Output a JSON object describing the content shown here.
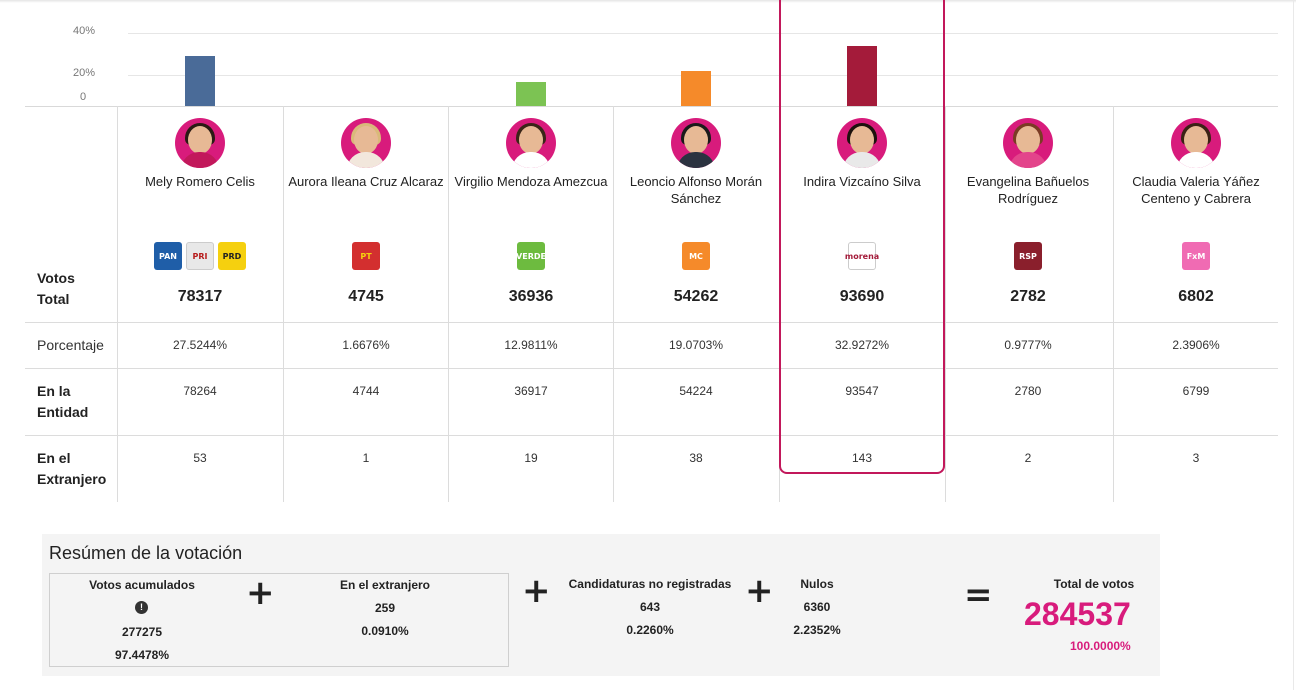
{
  "chart_data": {
    "type": "bar",
    "categories": [
      "Mely Romero Celis",
      "Aurora Ileana Cruz Alcaraz",
      "Virgilio Mendoza Amezcua",
      "Leoncio Alfonso Morán Sánchez",
      "Indira Vizcaíno Silva",
      "Evangelina Bañuelos Rodríguez",
      "Claudia Valeria Yáñez Centeno y Cabrera"
    ],
    "values": [
      27.5244,
      1.6676,
      12.9811,
      19.0703,
      32.9272,
      0.9777,
      2.3906
    ],
    "bar_colors": [
      "#4a6b98",
      "#ffffff",
      "#7cc353",
      "#f58a2a",
      "#a41b3a",
      "#ffffff",
      "#ffffff"
    ],
    "ytick_labels": [
      "40%",
      "20%",
      "0"
    ],
    "yticks": [
      40,
      20,
      0
    ],
    "ylim": [
      0,
      40
    ]
  },
  "table": {
    "row_labels": {
      "votos_l1": "Votos",
      "votos_l2": "Total",
      "porcentaje": "Porcentaje",
      "entidad_l1": "En la",
      "entidad_l2": "Entidad",
      "extranjero_l1": "En el",
      "extranjero_l2": "Extranjero"
    },
    "candidates": [
      {
        "name_l1": "Mely Romero Celis",
        "name_l2": "",
        "votes": "78317",
        "pct": "27.5244%",
        "entidad": "78264",
        "extranjero": "53",
        "hair": "#2a1a14",
        "outfit": "#c2185b",
        "logos": [
          {
            "text": "PAN",
            "bg": "#1f5ea8"
          },
          {
            "text": "PRI",
            "bg": "#e8e8e8",
            "fg": "#b71c1c"
          },
          {
            "text": "PRD",
            "bg": "#f5d00f",
            "fg": "#222"
          }
        ]
      },
      {
        "name_l1": "Aurora Ileana Cruz Alcaraz",
        "name_l2": "",
        "votes": "4745",
        "pct": "1.6676%",
        "entidad": "4744",
        "extranjero": "1",
        "hair": "#d9b97a",
        "outfit": "#f2e7dc",
        "logos": [
          {
            "text": "PT",
            "bg": "#d32f2f",
            "fg": "#f5d00f"
          }
        ]
      },
      {
        "name_l1": "Virgilio Mendoza Amezcua",
        "name_l2": "",
        "votes": "36936",
        "pct": "12.9811%",
        "entidad": "36917",
        "extranjero": "19",
        "hair": "#3a2518",
        "outfit": "#ffffff",
        "logos": [
          {
            "text": "VERDE",
            "bg": "#6dbb3f"
          }
        ]
      },
      {
        "name_l1": "Leoncio Alfonso Morán",
        "name_l2": "Sánchez",
        "votes": "54262",
        "pct": "19.0703%",
        "entidad": "54224",
        "extranjero": "38",
        "hair": "#1a1a1a",
        "outfit": "#2b3340",
        "logos": [
          {
            "text": "MC",
            "bg": "#f58a2a"
          }
        ]
      },
      {
        "name_l1": "Indira Vizcaíno Silva",
        "name_l2": "",
        "votes": "93690",
        "pct": "32.9272%",
        "entidad": "93547",
        "extranjero": "143",
        "hair": "#1d120d",
        "outfit": "#e9e9e9",
        "logos": [
          {
            "text": "morena",
            "bg": "#ffffff",
            "fg": "#a41b3a"
          }
        ]
      },
      {
        "name_l1": "Evangelina Bañuelos",
        "name_l2": "Rodríguez",
        "votes": "2782",
        "pct": "0.9777%",
        "entidad": "2780",
        "extranjero": "2",
        "hair": "#7a3b24",
        "outfit": "#e3448b",
        "logos": [
          {
            "text": "RSP",
            "bg": "#8a1f2c"
          }
        ]
      },
      {
        "name_l1": "Claudia Valeria Yáñez",
        "name_l2": "Centeno y Cabrera",
        "votes": "6802",
        "pct": "2.3906%",
        "entidad": "6799",
        "extranjero": "3",
        "hair": "#3b2215",
        "outfit": "#ffffff",
        "logos": [
          {
            "text": "FxM",
            "bg": "#f06bb3"
          }
        ]
      }
    ]
  },
  "summary": {
    "title": "Resúmen de la votación",
    "acumulados": {
      "label": "Votos acumulados",
      "value": "277275",
      "pct": "97.4478%"
    },
    "extranjero": {
      "label": "En el extranjero",
      "value": "259",
      "pct": "0.0910%"
    },
    "no_registradas": {
      "label": "Candidaturas no registradas",
      "value": "643",
      "pct": "0.2260%"
    },
    "nulos": {
      "label": "Nulos",
      "value": "6360",
      "pct": "2.2352%"
    },
    "total": {
      "label": "Total de votos",
      "value": "284537",
      "pct": "100.0000%"
    },
    "plus_symbol": "+",
    "equals_symbol": "=",
    "info_symbol": "!"
  }
}
